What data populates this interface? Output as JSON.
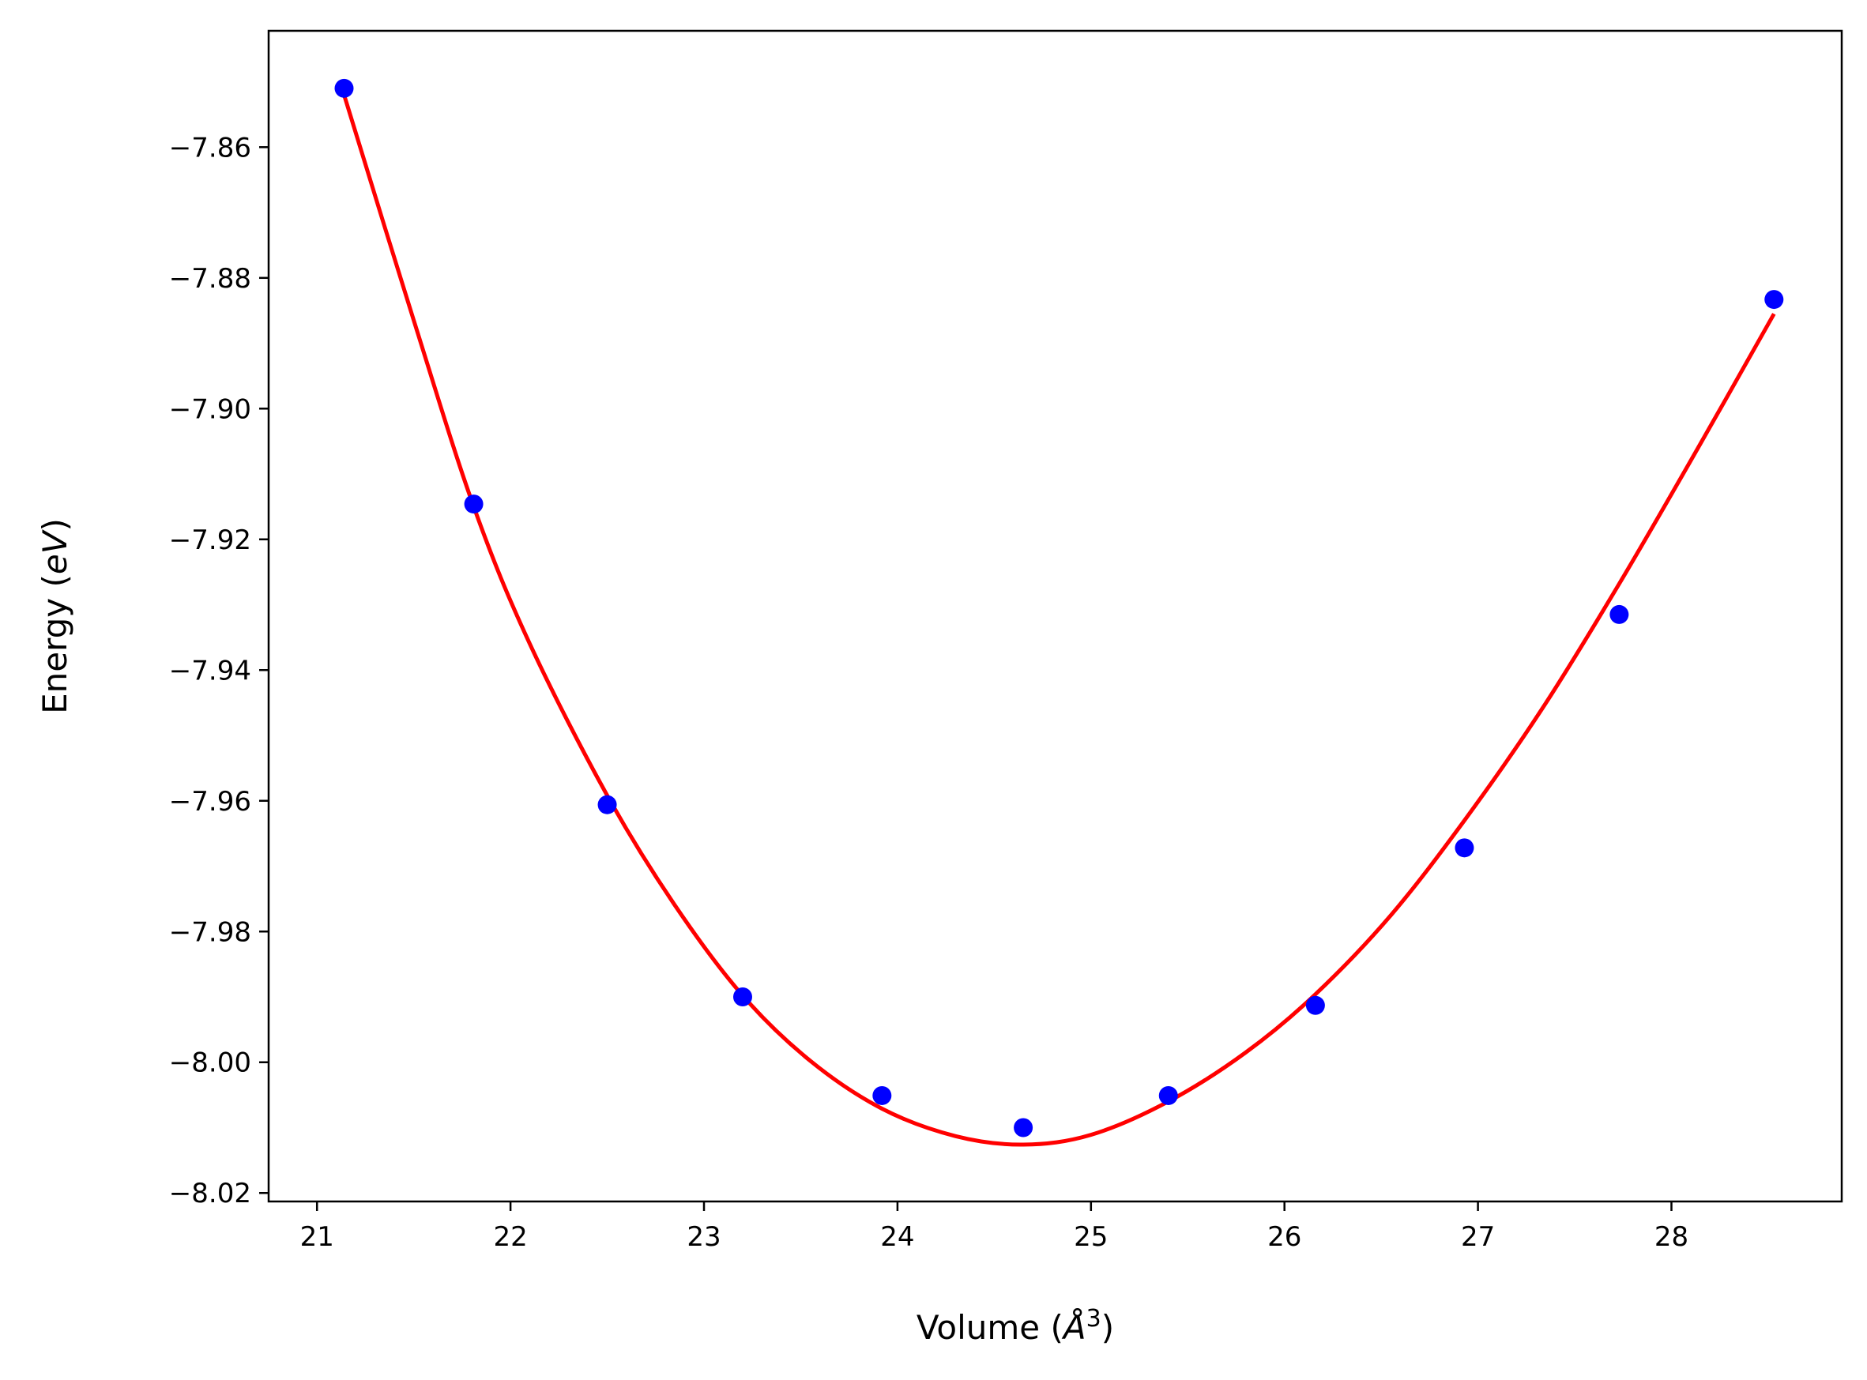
{
  "chart_data": {
    "type": "scatter",
    "xlabel_text": "Volume (",
    "xlabel_sym": "Å",
    "xlabel_sup": "3",
    "xlabel_close": ")",
    "ylabel_text": "Energy (",
    "ylabel_sym": "eV",
    "ylabel_close": ")",
    "xlim": [
      20.75,
      28.88
    ],
    "ylim": [
      -8.0213,
      -7.8422
    ],
    "xticks": [
      21,
      22,
      23,
      24,
      25,
      26,
      27,
      28
    ],
    "xtick_labels": [
      "21",
      "22",
      "23",
      "24",
      "25",
      "26",
      "27",
      "28"
    ],
    "yticks": [
      -8.02,
      -8.0,
      -7.98,
      -7.96,
      -7.94,
      -7.92,
      -7.9,
      -7.88,
      -7.86
    ],
    "ytick_labels": [
      "−8.02",
      "−8.00",
      "−7.98",
      "−7.96",
      "−7.94",
      "−7.92",
      "−7.90",
      "−7.88",
      "−7.86"
    ],
    "grid": false,
    "series": [
      {
        "kind": "points",
        "color": "#0000ff",
        "x": [
          21.14,
          21.81,
          22.5,
          23.2,
          23.92,
          24.65,
          25.4,
          26.16,
          26.93,
          27.73,
          28.53
        ],
        "y": [
          -7.851,
          -7.9146,
          -7.9606,
          -7.99,
          -8.0051,
          -8.01,
          -8.0051,
          -7.9913,
          -7.9672,
          -7.9315,
          -7.8833
        ]
      },
      {
        "kind": "fit-curve",
        "color": "#ff0000",
        "x": [
          21.14,
          21.5,
          21.81,
          22.1,
          22.5,
          22.85,
          23.2,
          23.55,
          23.92,
          24.3,
          24.65,
          25.0,
          25.4,
          25.8,
          26.16,
          26.55,
          26.93,
          27.33,
          27.73,
          28.13,
          28.53
        ],
        "y": [
          -7.852,
          -7.8865,
          -7.915,
          -7.936,
          -7.9592,
          -7.976,
          -7.9898,
          -7.9998,
          -8.0071,
          -8.0113,
          -8.0126,
          -8.0111,
          -8.006,
          -7.9985,
          -7.9896,
          -7.9775,
          -7.963,
          -7.946,
          -7.9268,
          -7.9064,
          -7.8855
        ]
      }
    ]
  }
}
